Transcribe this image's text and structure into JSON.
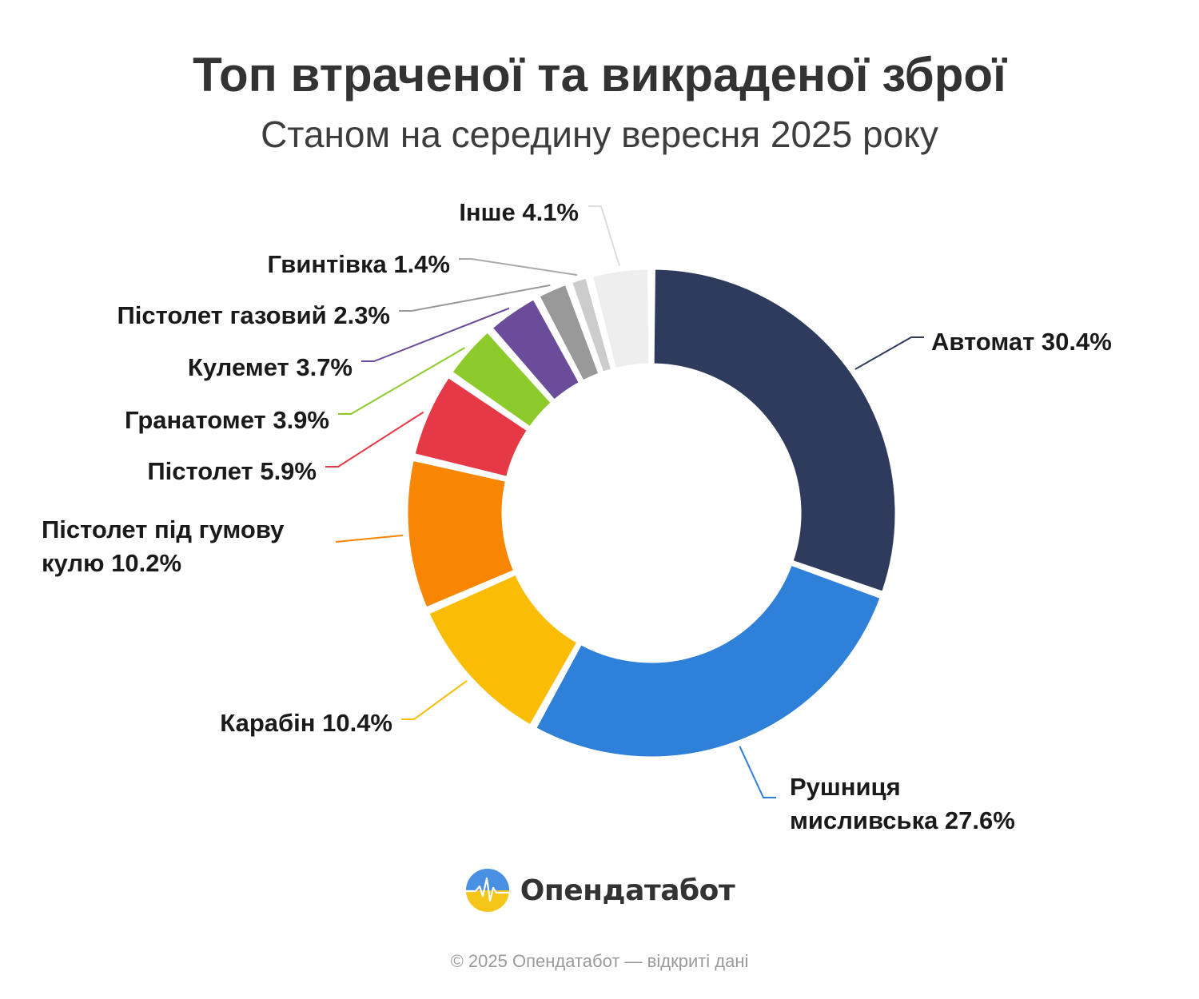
{
  "header": {
    "title": "Топ втраченої та викраденої зброї",
    "subtitle": "Станом на середину вересня 2025 року"
  },
  "brand": {
    "name": "Опендатабот",
    "icon": "opendatabot-logo-icon"
  },
  "footer": {
    "text": "© 2025 Опендатабот — відкриті дані"
  },
  "chart_data": {
    "type": "pie",
    "variant": "donut",
    "title": "Топ втраченої та викраденої зброї",
    "subtitle": "Станом на середину вересня 2025 року",
    "unit": "%",
    "slices": [
      {
        "name": "Автомат",
        "value": 30.4,
        "label_lines": [
          "Автомат 30.4%"
        ],
        "color": "#2f3b5c"
      },
      {
        "name": "Рушниця мисливська",
        "value": 27.6,
        "label_lines": [
          "Рушниця",
          "мисливська 27.6%"
        ],
        "color": "#2f80d9"
      },
      {
        "name": "Карабін",
        "value": 10.4,
        "label_lines": [
          "Карабін 10.4%"
        ],
        "color": "#fbbc05"
      },
      {
        "name": "Пістолет під гумову кулю",
        "value": 10.2,
        "label_lines": [
          "Пістолет під гумову",
          "кулю 10.2%"
        ],
        "color": "#f88600"
      },
      {
        "name": "Пістолет",
        "value": 5.9,
        "label_lines": [
          "Пістолет 5.9%"
        ],
        "color": "#e63946"
      },
      {
        "name": "Гранатомет",
        "value": 3.9,
        "label_lines": [
          "Гранатомет 3.9%"
        ],
        "color": "#8ccb2b"
      },
      {
        "name": "Кулемет",
        "value": 3.7,
        "label_lines": [
          "Кулемет 3.7%"
        ],
        "color": "#6b4c9a"
      },
      {
        "name": "Пістолет газовий",
        "value": 2.3,
        "label_lines": [
          "Пістолет газовий 2.3%"
        ],
        "color": "#999999"
      },
      {
        "name": "Гвинтівка",
        "value": 1.4,
        "label_lines": [
          "Гвинтівка 1.4%"
        ],
        "color": "#cccccc"
      },
      {
        "name": "Інше",
        "value": 4.1,
        "label_lines": [
          "Інше 4.1%"
        ],
        "color": "#eeeeee"
      }
    ]
  }
}
